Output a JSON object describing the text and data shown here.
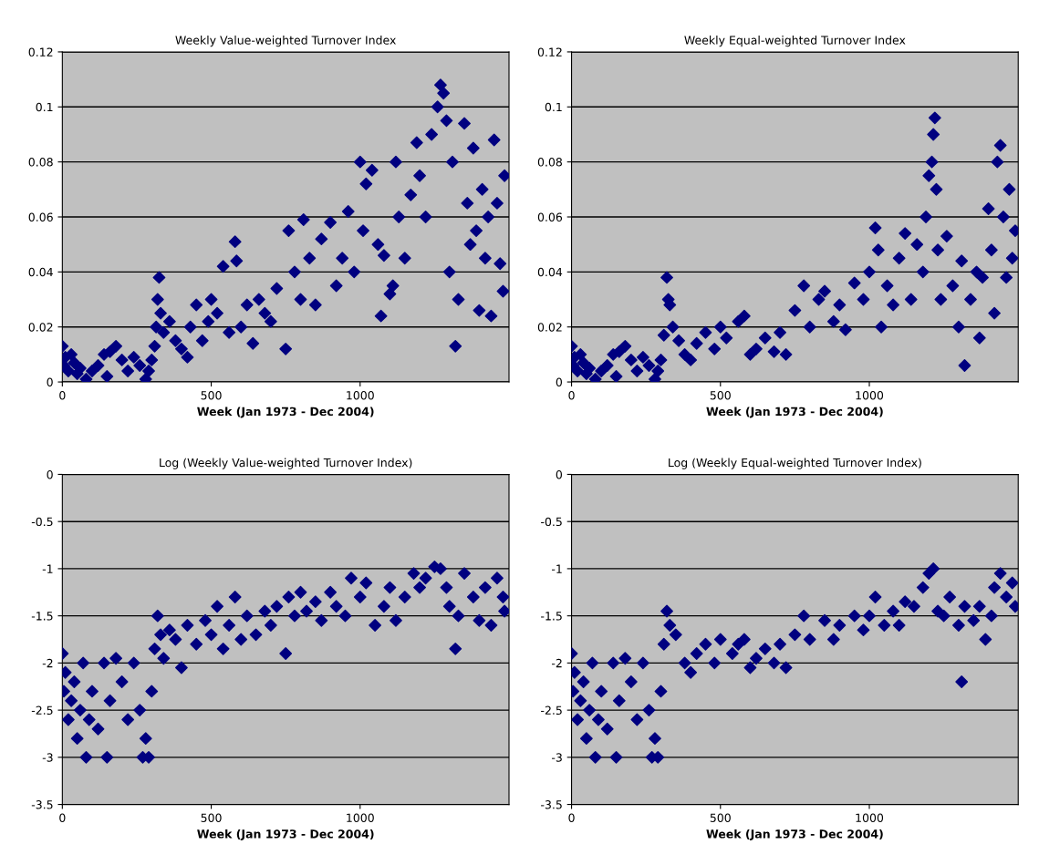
{
  "chart_data": [
    {
      "type": "scatter",
      "title": "Weekly Value-weighted Turnover Index",
      "xlabel": "Week (Jan 1973 - Dec 2004)",
      "marker": "diamond",
      "grid": "y",
      "xlim": [
        0,
        1500
      ],
      "xticks": [
        0,
        500,
        1000
      ],
      "ylim": [
        0,
        0.12
      ],
      "yticks": [
        0,
        0.02,
        0.04,
        0.06,
        0.08,
        0.1,
        0.12
      ],
      "series": [
        {
          "color": "#000080",
          "x": [
            0,
            5,
            10,
            20,
            30,
            40,
            50,
            60,
            80,
            100,
            120,
            140,
            150,
            160,
            180,
            200,
            220,
            240,
            260,
            280,
            290,
            300,
            310,
            315,
            320,
            325,
            330,
            340,
            360,
            380,
            400,
            420,
            430,
            450,
            470,
            490,
            500,
            520,
            540,
            560,
            580,
            585,
            600,
            620,
            640,
            660,
            680,
            700,
            720,
            750,
            760,
            780,
            800,
            810,
            830,
            850,
            870,
            900,
            920,
            940,
            960,
            980,
            1000,
            1010,
            1020,
            1040,
            1060,
            1070,
            1080,
            1100,
            1110,
            1120,
            1130,
            1150,
            1170,
            1190,
            1200,
            1220,
            1240,
            1260,
            1270,
            1280,
            1290,
            1300,
            1310,
            1320,
            1330,
            1350,
            1360,
            1370,
            1380,
            1390,
            1400,
            1410,
            1420,
            1430,
            1440,
            1450,
            1460,
            1470,
            1480,
            1485
          ],
          "values": [
            0.013,
            0.006,
            0.009,
            0.004,
            0.01,
            0.007,
            0.003,
            0.005,
            0.001,
            0.004,
            0.006,
            0.01,
            0.002,
            0.011,
            0.013,
            0.008,
            0.004,
            0.009,
            0.006,
            0.001,
            0.004,
            0.008,
            0.013,
            0.02,
            0.03,
            0.038,
            0.025,
            0.018,
            0.022,
            0.015,
            0.012,
            0.009,
            0.02,
            0.028,
            0.015,
            0.022,
            0.03,
            0.025,
            0.042,
            0.018,
            0.051,
            0.044,
            0.02,
            0.028,
            0.014,
            0.03,
            0.025,
            0.022,
            0.034,
            0.012,
            0.055,
            0.04,
            0.03,
            0.059,
            0.045,
            0.028,
            0.052,
            0.058,
            0.035,
            0.045,
            0.062,
            0.04,
            0.08,
            0.055,
            0.072,
            0.077,
            0.05,
            0.024,
            0.046,
            0.032,
            0.035,
            0.08,
            0.06,
            0.045,
            0.068,
            0.087,
            0.075,
            0.06,
            0.09,
            0.1,
            0.108,
            0.105,
            0.095,
            0.04,
            0.08,
            0.013,
            0.03,
            0.094,
            0.065,
            0.05,
            0.085,
            0.055,
            0.026,
            0.07,
            0.045,
            0.06,
            0.024,
            0.088,
            0.065,
            0.043,
            0.033,
            0.075
          ]
        }
      ]
    },
    {
      "type": "scatter",
      "title": "Weekly Equal-weighted Turnover Index",
      "xlabel": "Week (Jan 1973 - Dec 2004)",
      "marker": "diamond",
      "grid": "y",
      "xlim": [
        0,
        1500
      ],
      "xticks": [
        0,
        500,
        1000
      ],
      "ylim": [
        0,
        0.12
      ],
      "yticks": [
        0,
        0.02,
        0.04,
        0.06,
        0.08,
        0.1,
        0.12
      ],
      "series": [
        {
          "color": "#000080",
          "x": [
            0,
            5,
            10,
            20,
            30,
            40,
            50,
            60,
            80,
            100,
            120,
            140,
            150,
            160,
            180,
            200,
            220,
            240,
            260,
            280,
            290,
            300,
            310,
            320,
            325,
            330,
            340,
            360,
            380,
            400,
            420,
            450,
            480,
            500,
            520,
            560,
            580,
            600,
            620,
            650,
            680,
            700,
            720,
            750,
            780,
            800,
            830,
            850,
            880,
            900,
            920,
            950,
            980,
            1000,
            1020,
            1030,
            1040,
            1060,
            1080,
            1100,
            1120,
            1140,
            1160,
            1180,
            1190,
            1200,
            1210,
            1215,
            1220,
            1225,
            1230,
            1240,
            1260,
            1280,
            1300,
            1310,
            1320,
            1340,
            1360,
            1370,
            1380,
            1400,
            1410,
            1420,
            1430,
            1440,
            1450,
            1460,
            1470,
            1480,
            1490
          ],
          "values": [
            0.013,
            0.006,
            0.009,
            0.004,
            0.01,
            0.007,
            0.003,
            0.005,
            0.001,
            0.004,
            0.006,
            0.01,
            0.002,
            0.011,
            0.013,
            0.008,
            0.004,
            0.009,
            0.006,
            0.001,
            0.004,
            0.008,
            0.017,
            0.038,
            0.03,
            0.028,
            0.02,
            0.015,
            0.01,
            0.008,
            0.014,
            0.018,
            0.012,
            0.02,
            0.016,
            0.022,
            0.024,
            0.01,
            0.012,
            0.016,
            0.011,
            0.018,
            0.01,
            0.026,
            0.035,
            0.02,
            0.03,
            0.033,
            0.022,
            0.028,
            0.019,
            0.036,
            0.03,
            0.04,
            0.056,
            0.048,
            0.02,
            0.035,
            0.028,
            0.045,
            0.054,
            0.03,
            0.05,
            0.04,
            0.06,
            0.075,
            0.08,
            0.09,
            0.096,
            0.07,
            0.048,
            0.03,
            0.053,
            0.035,
            0.02,
            0.044,
            0.006,
            0.03,
            0.04,
            0.016,
            0.038,
            0.063,
            0.048,
            0.025,
            0.08,
            0.086,
            0.06,
            0.038,
            0.07,
            0.045,
            0.055
          ]
        }
      ]
    },
    {
      "type": "scatter",
      "title": "Log (Weekly Value-weighted Turnover Index)",
      "xlabel": "Week (Jan 1973 - Dec 2004)",
      "marker": "diamond",
      "grid": "y",
      "xlim": [
        0,
        1500
      ],
      "xticks": [
        0,
        500,
        1000
      ],
      "ylim": [
        -3.5,
        0
      ],
      "yticks": [
        -3.5,
        -3,
        -2.5,
        -2,
        -1.5,
        -1,
        -0.5,
        0
      ],
      "series": [
        {
          "color": "#000080",
          "x": [
            0,
            5,
            10,
            20,
            30,
            40,
            50,
            60,
            70,
            80,
            90,
            100,
            120,
            140,
            150,
            160,
            180,
            200,
            220,
            240,
            260,
            270,
            280,
            290,
            300,
            310,
            320,
            330,
            340,
            360,
            380,
            400,
            420,
            450,
            480,
            500,
            520,
            540,
            560,
            580,
            600,
            620,
            650,
            680,
            700,
            720,
            750,
            760,
            780,
            800,
            820,
            850,
            870,
            900,
            920,
            950,
            970,
            1000,
            1020,
            1050,
            1080,
            1100,
            1120,
            1150,
            1180,
            1200,
            1220,
            1250,
            1270,
            1290,
            1300,
            1320,
            1330,
            1350,
            1380,
            1400,
            1420,
            1440,
            1460,
            1480,
            1485
          ],
          "values": [
            -1.9,
            -2.3,
            -2.1,
            -2.6,
            -2.4,
            -2.2,
            -2.8,
            -2.5,
            -2.0,
            -3.0,
            -2.6,
            -2.3,
            -2.7,
            -2.0,
            -3.0,
            -2.4,
            -1.95,
            -2.2,
            -2.6,
            -2.0,
            -2.5,
            -3.0,
            -2.8,
            -3.0,
            -2.3,
            -1.85,
            -1.5,
            -1.7,
            -1.95,
            -1.65,
            -1.75,
            -2.05,
            -1.6,
            -1.8,
            -1.55,
            -1.7,
            -1.4,
            -1.85,
            -1.6,
            -1.3,
            -1.75,
            -1.5,
            -1.7,
            -1.45,
            -1.6,
            -1.4,
            -1.9,
            -1.3,
            -1.5,
            -1.25,
            -1.45,
            -1.35,
            -1.55,
            -1.25,
            -1.4,
            -1.5,
            -1.1,
            -1.3,
            -1.15,
            -1.6,
            -1.4,
            -1.2,
            -1.55,
            -1.3,
            -1.05,
            -1.2,
            -1.1,
            -0.98,
            -1.0,
            -1.2,
            -1.4,
            -1.85,
            -1.5,
            -1.05,
            -1.3,
            -1.55,
            -1.2,
            -1.6,
            -1.1,
            -1.3,
            -1.45
          ]
        }
      ]
    },
    {
      "type": "scatter",
      "title": "Log (Weekly Equal-weighted Turnover Index)",
      "xlabel": "Week (Jan 1973 - Dec 2004)",
      "marker": "diamond",
      "grid": "y",
      "xlim": [
        0,
        1500
      ],
      "xticks": [
        0,
        500,
        1000
      ],
      "ylim": [
        -3.5,
        0
      ],
      "yticks": [
        -3.5,
        -3,
        -2.5,
        -2,
        -1.5,
        -1,
        -0.5,
        0
      ],
      "series": [
        {
          "color": "#000080",
          "x": [
            0,
            5,
            10,
            20,
            30,
            40,
            50,
            60,
            70,
            80,
            90,
            100,
            120,
            140,
            150,
            160,
            180,
            200,
            220,
            240,
            260,
            270,
            280,
            290,
            300,
            310,
            320,
            330,
            350,
            380,
            400,
            420,
            450,
            480,
            500,
            540,
            560,
            580,
            600,
            620,
            650,
            680,
            700,
            720,
            750,
            780,
            800,
            850,
            880,
            900,
            950,
            980,
            1000,
            1020,
            1050,
            1080,
            1100,
            1120,
            1150,
            1180,
            1200,
            1215,
            1230,
            1250,
            1270,
            1300,
            1310,
            1320,
            1350,
            1370,
            1390,
            1410,
            1420,
            1440,
            1460,
            1480,
            1490
          ],
          "values": [
            -1.9,
            -2.3,
            -2.1,
            -2.6,
            -2.4,
            -2.2,
            -2.8,
            -2.5,
            -2.0,
            -3.0,
            -2.6,
            -2.3,
            -2.7,
            -2.0,
            -3.0,
            -2.4,
            -1.95,
            -2.2,
            -2.6,
            -2.0,
            -2.5,
            -3.0,
            -2.8,
            -3.0,
            -2.3,
            -1.8,
            -1.45,
            -1.6,
            -1.7,
            -2.0,
            -2.1,
            -1.9,
            -1.8,
            -2.0,
            -1.75,
            -1.9,
            -1.8,
            -1.75,
            -2.05,
            -1.95,
            -1.85,
            -2.0,
            -1.8,
            -2.05,
            -1.7,
            -1.5,
            -1.75,
            -1.55,
            -1.75,
            -1.6,
            -1.5,
            -1.65,
            -1.5,
            -1.3,
            -1.6,
            -1.45,
            -1.6,
            -1.35,
            -1.4,
            -1.2,
            -1.05,
            -1.0,
            -1.45,
            -1.5,
            -1.3,
            -1.6,
            -2.2,
            -1.4,
            -1.55,
            -1.4,
            -1.75,
            -1.5,
            -1.2,
            -1.05,
            -1.3,
            -1.15,
            -1.4
          ]
        }
      ]
    }
  ]
}
